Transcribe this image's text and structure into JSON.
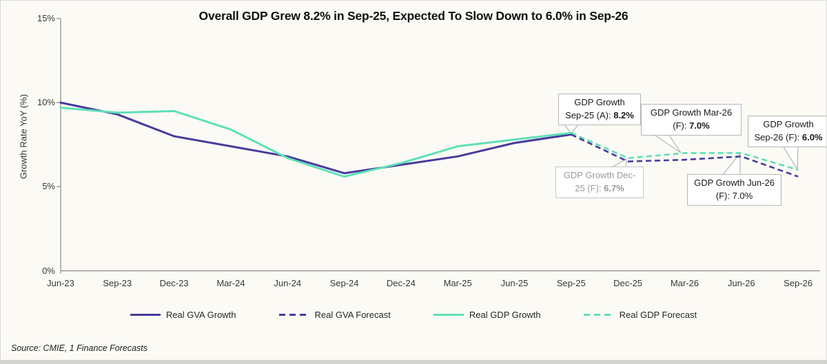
{
  "title": "Overall GDP Grew 8.2% in Sep-25, Expected To Slow Down to 6.0% in Sep-26",
  "source": "Source: CMIE, 1 Finance Forecasts",
  "colors": {
    "gva_purple": "#483A9D",
    "gdp_teal": "#5FDFB6",
    "axis_gray": "#9a9a9a",
    "callout_border": "#b5b5b5",
    "muted_text": "#9a9a9a",
    "background": "#FCFAF5"
  },
  "axis": {
    "y_title": "Growth Rate YoY (%)",
    "y_ticks": [
      {
        "value": 0,
        "label": "0%"
      },
      {
        "value": 5,
        "label": "5%"
      },
      {
        "value": 10,
        "label": "10%"
      },
      {
        "value": 15,
        "label": "15%"
      }
    ]
  },
  "chart_data": {
    "type": "line",
    "title": "Overall GDP Grew 8.2% in Sep-25, Expected To Slow Down to 6.0% in Sep-26",
    "xlabel": "",
    "ylabel": "Growth Rate YoY (%)",
    "ylim": [
      0,
      15
    ],
    "grid": false,
    "legend_position": "bottom",
    "categories": [
      "Jun-23",
      "Sep-23",
      "Dec-23",
      "Mar-24",
      "Jun-24",
      "Sep-24",
      "Dec-24",
      "Mar-25",
      "Jun-25",
      "Sep-25",
      "Dec-25",
      "Mar-26",
      "Jun-26",
      "Sep-26"
    ],
    "series": [
      {
        "name": "Real GVA Growth",
        "line_style": "solid",
        "color": "#483A9D",
        "start_index": 0,
        "values": [
          10.0,
          9.3,
          8.0,
          7.4,
          6.8,
          5.8,
          6.3,
          6.8,
          7.6,
          8.1
        ]
      },
      {
        "name": "Real GVA Forecast",
        "line_style": "dashed",
        "color": "#483A9D",
        "start_index": 9,
        "values": [
          8.1,
          6.5,
          6.6,
          6.8,
          5.6
        ]
      },
      {
        "name": "Real GDP Growth",
        "line_style": "solid",
        "color": "#5FDFB6",
        "start_index": 0,
        "values": [
          9.7,
          9.4,
          9.5,
          8.4,
          6.7,
          5.6,
          6.4,
          7.4,
          7.8,
          8.2
        ]
      },
      {
        "name": "Real GDP Forecast",
        "line_style": "dashed",
        "color": "#5FDFB6",
        "start_index": 9,
        "values": [
          8.2,
          6.7,
          7.0,
          7.0,
          6.0
        ]
      }
    ]
  },
  "legend": [
    {
      "label": "Real GVA Growth",
      "line_style": "solid",
      "color": "#483A9D"
    },
    {
      "label": "Real GVA Forecast",
      "line_style": "dashed",
      "color": "#483A9D"
    },
    {
      "label": "Real GDP Growth",
      "line_style": "solid",
      "color": "#5FDFB6"
    },
    {
      "label": "Real GDP Forecast",
      "line_style": "dashed",
      "color": "#5FDFB6"
    }
  ],
  "annotations": [
    {
      "line1": "GDP Growth",
      "line2_prefix": "Sep-25 (A): ",
      "value": "8.2%",
      "value_bold": true,
      "muted": false
    },
    {
      "line1": "GDP Growth Dec-",
      "line2_prefix": "25 (F): ",
      "value": "6.7%",
      "value_bold": true,
      "muted": true
    },
    {
      "line1": "GDP Growth Mar-26",
      "line2_prefix": "(F): ",
      "value": "7.0%",
      "value_bold": true,
      "muted": false
    },
    {
      "line1": "GDP Growth Jun-26",
      "line2_prefix": "(F): ",
      "value": "7.0%",
      "value_bold": false,
      "muted": false
    },
    {
      "line1": "GDP Growth",
      "line2_prefix": "Sep-26 (F): ",
      "value": "6.0%",
      "value_bold": true,
      "muted": false
    }
  ]
}
